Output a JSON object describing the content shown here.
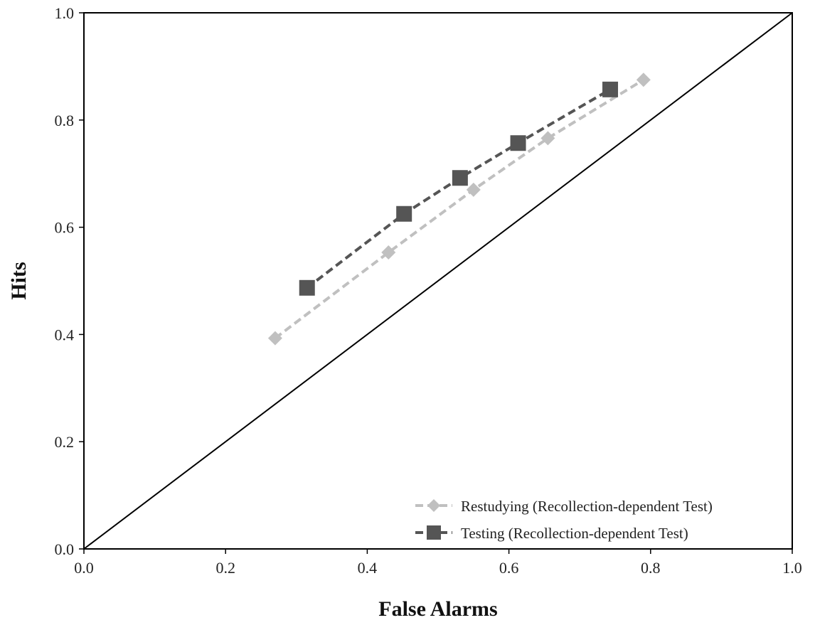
{
  "chart_data": {
    "type": "line",
    "title": "",
    "xlabel": "False Alarms",
    "ylabel": "Hits",
    "xlim": [
      0,
      1
    ],
    "ylim": [
      0,
      1
    ],
    "x_ticks": [
      "0.0",
      "0.2",
      "0.4",
      "0.6",
      "0.8",
      "1.0"
    ],
    "y_ticks": [
      "0.0",
      "0.2",
      "0.4",
      "0.6",
      "0.8",
      "1.0"
    ],
    "reference_line": {
      "x": [
        0,
        1
      ],
      "y": [
        0,
        1
      ]
    },
    "legend_position": "bottom-right",
    "grid": false,
    "series": [
      {
        "name": "Restudying (Recollection-dependent Test)",
        "color": "#c0c0c0",
        "marker": "diamond",
        "x": [
          0.27,
          0.43,
          0.55,
          0.655,
          0.79
        ],
        "y": [
          0.393,
          0.553,
          0.67,
          0.766,
          0.875
        ]
      },
      {
        "name": "Testing (Recollection-dependent Test)",
        "color": "#555555",
        "marker": "square",
        "x": [
          0.315,
          0.452,
          0.531,
          0.613,
          0.743
        ],
        "y": [
          0.487,
          0.625,
          0.692,
          0.757,
          0.857
        ]
      }
    ]
  }
}
